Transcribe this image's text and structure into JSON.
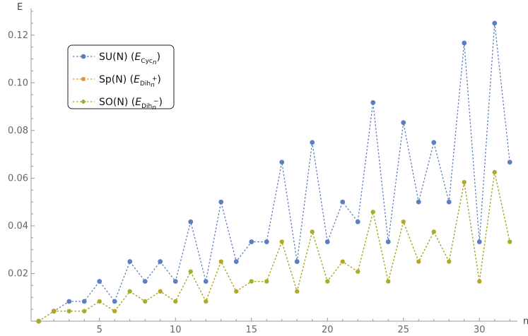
{
  "chart_data": {
    "type": "line",
    "xlabel": "n",
    "ylabel": "E",
    "xlim": [
      0.5,
      32.5
    ],
    "ylim": [
      0,
      0.13
    ],
    "x_ticks": [
      5,
      10,
      15,
      20,
      25,
      30
    ],
    "y_ticks": [
      0.02,
      0.04,
      0.06,
      0.08,
      0.1,
      0.12
    ],
    "x_tick_labels": [
      "5",
      "10",
      "15",
      "20",
      "25",
      "30"
    ],
    "y_tick_labels": [
      "0.02",
      "0.04",
      "0.06",
      "0.08",
      "0.10",
      "0.12"
    ],
    "grid": false,
    "legend_position": "top-left",
    "x": [
      1,
      2,
      3,
      4,
      5,
      6,
      7,
      8,
      9,
      10,
      11,
      12,
      13,
      14,
      15,
      16,
      17,
      18,
      19,
      20,
      21,
      22,
      23,
      24,
      25,
      26,
      27,
      28,
      29,
      30,
      31,
      32
    ],
    "series": [
      {
        "name": "SU(N)",
        "legend_symbol": "E",
        "legend_sub": "Cyc",
        "legend_subsub": "n",
        "legend_sup": "",
        "color": "#5b7fbf",
        "marker": "circle",
        "values": [
          0,
          0.0042,
          0.0083,
          0.0083,
          0.0167,
          0.0083,
          0.025,
          0.0167,
          0.025,
          0.0167,
          0.0417,
          0.0167,
          0.05,
          0.025,
          0.0333,
          0.0333,
          0.0667,
          0.025,
          0.075,
          0.0333,
          0.05,
          0.0417,
          0.0917,
          0.0333,
          0.0833,
          0.05,
          0.075,
          0.05,
          0.1167,
          0.0333,
          0.125,
          0.0667
        ]
      },
      {
        "name": "Sp(N)",
        "legend_symbol": "E",
        "legend_sub": "Dih",
        "legend_subsub": "n",
        "legend_sup": "+",
        "color": "#e8922e",
        "marker": "square",
        "values": [
          0,
          0.0042,
          0.0042,
          0.0042,
          0.0083,
          0.0042,
          0.0125,
          0.0083,
          0.0125,
          0.0083,
          0.0208,
          0.0083,
          0.025,
          0.0125,
          0.0167,
          0.0167,
          0.0333,
          0.0125,
          0.0375,
          0.0167,
          0.025,
          0.0208,
          0.0458,
          0.0167,
          0.0417,
          0.025,
          0.0375,
          0.025,
          0.0583,
          0.0167,
          0.0625,
          0.0333
        ]
      },
      {
        "name": "SO(N)",
        "legend_symbol": "E",
        "legend_sub": "Dih",
        "legend_subsub": "n",
        "legend_sup": "−",
        "color": "#9fb02e",
        "marker": "diamond",
        "values": [
          0,
          0.0042,
          0.0042,
          0.0042,
          0.0083,
          0.0042,
          0.0125,
          0.0083,
          0.0125,
          0.0083,
          0.0208,
          0.0083,
          0.025,
          0.0125,
          0.0167,
          0.0167,
          0.0333,
          0.0125,
          0.0375,
          0.0167,
          0.025,
          0.0208,
          0.0458,
          0.0167,
          0.0417,
          0.025,
          0.0375,
          0.025,
          0.0583,
          0.0167,
          0.0625,
          0.0333
        ]
      }
    ]
  }
}
